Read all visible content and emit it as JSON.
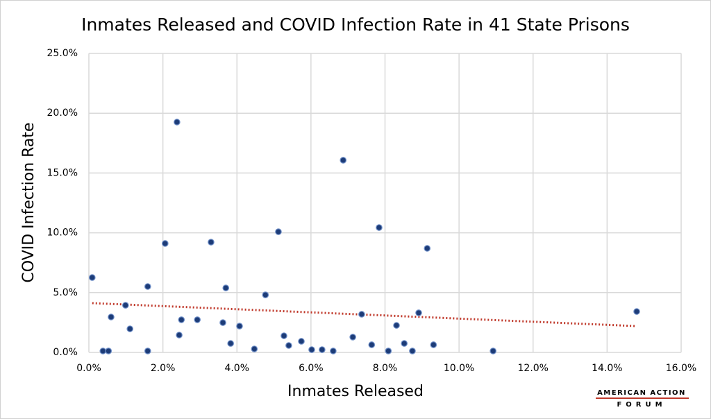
{
  "chart_data": {
    "type": "scatter",
    "title": "Inmates Released and COVID Infection Rate in 41 State Prisons",
    "x_label": "Inmates Released",
    "y_label": "COVID Infection Rate",
    "color": "#1d3c78",
    "x": [
      0.09,
      0.38,
      0.53,
      0.6,
      0.99,
      1.11,
      1.59,
      1.59,
      2.06,
      2.38,
      2.44,
      2.5,
      2.93,
      3.3,
      3.62,
      3.7,
      3.83,
      4.07,
      4.47,
      4.77,
      5.12,
      5.27,
      5.4,
      5.74,
      6.02,
      6.3,
      6.6,
      6.87,
      7.13,
      7.37,
      7.64,
      7.84,
      8.09,
      8.31,
      8.52,
      8.74,
      8.91,
      9.14,
      9.31,
      10.92,
      14.8
    ],
    "values": [
      6.26,
      0.12,
      0.12,
      2.96,
      3.94,
      1.97,
      5.51,
      0.12,
      9.11,
      19.26,
      1.45,
      2.73,
      2.73,
      9.22,
      2.49,
      5.39,
      0.75,
      2.2,
      0.29,
      4.81,
      10.09,
      1.39,
      0.58,
      0.93,
      0.23,
      0.23,
      0.12,
      16.07,
      1.28,
      3.19,
      0.64,
      10.44,
      0.12,
      2.26,
      0.75,
      0.12,
      3.31,
      8.7,
      0.64,
      0.12,
      3.42
    ],
    "trendline": {
      "color": "#c0392b",
      "x": [
        0.09,
        14.8
      ],
      "y": [
        4.12,
        2.2
      ]
    },
    "xlim": [
      0,
      16
    ],
    "ylim": [
      0,
      25
    ],
    "xticks": [
      {
        "value": 0,
        "label": "0.0%"
      },
      {
        "value": 2,
        "label": "2.0%"
      },
      {
        "value": 4,
        "label": "4.0%"
      },
      {
        "value": 6,
        "label": "6.0%"
      },
      {
        "value": 8,
        "label": "8.0%"
      },
      {
        "value": 10,
        "label": "10.0%"
      },
      {
        "value": 12,
        "label": "12.0%"
      },
      {
        "value": 14,
        "label": "14.0%"
      },
      {
        "value": 16,
        "label": "16.0%"
      }
    ],
    "yticks": [
      {
        "value": 0,
        "label": "0.0%"
      },
      {
        "value": 5,
        "label": "5.0%"
      },
      {
        "value": 10,
        "label": "10.0%"
      },
      {
        "value": 15,
        "label": "15.0%"
      },
      {
        "value": 20,
        "label": "20.0%"
      },
      {
        "value": 25,
        "label": "25.0%"
      }
    ],
    "grid": true
  },
  "logo": {
    "line1": "AMERICAN ACTION",
    "line2": "FORUM"
  }
}
